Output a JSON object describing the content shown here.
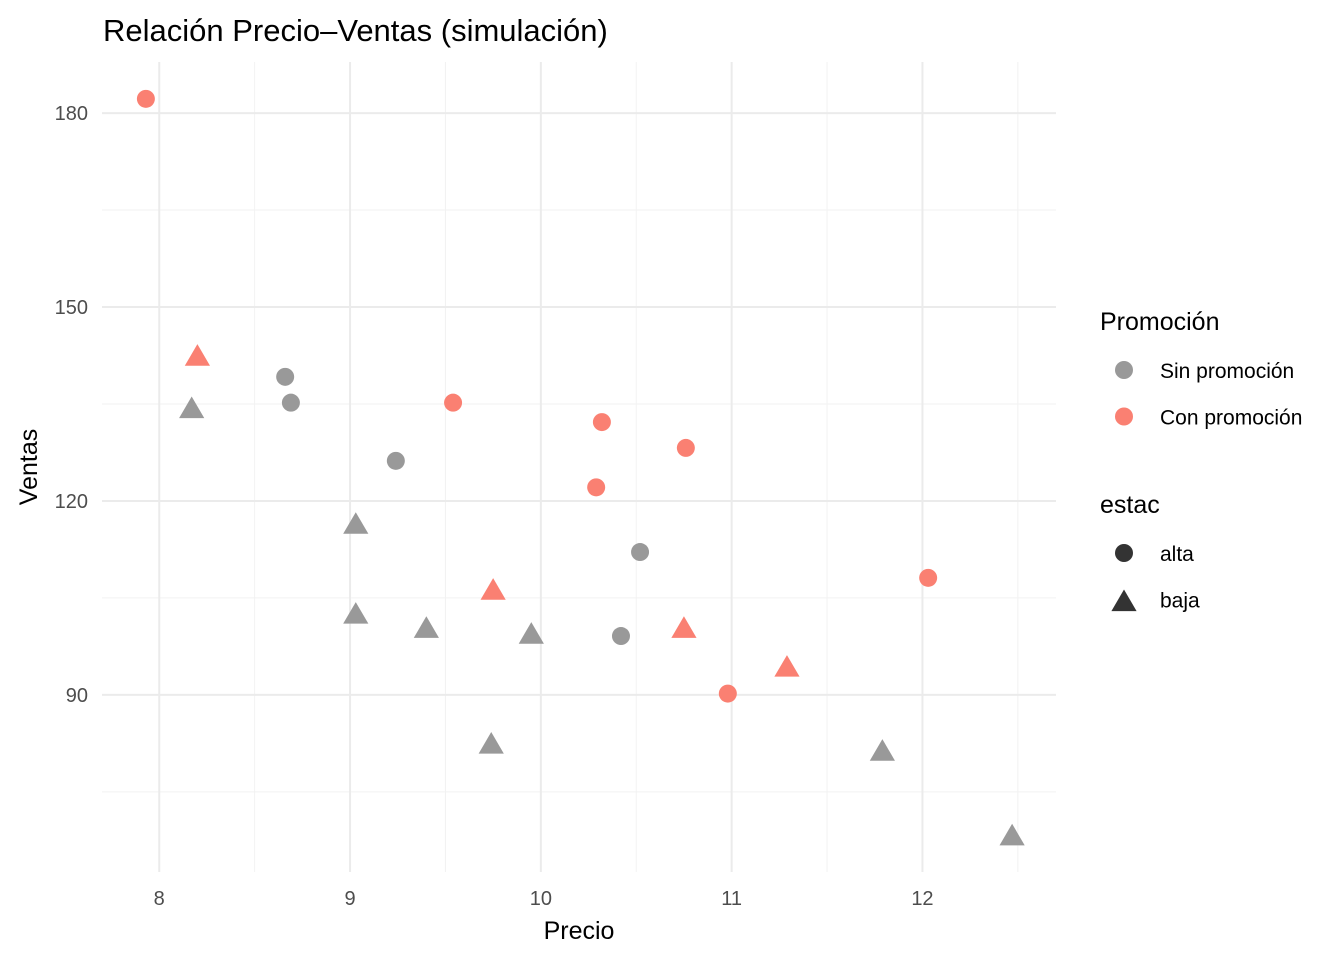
{
  "chart_data": {
    "type": "scatter",
    "title": "Relación Precio–Ventas (simulación)",
    "xlabel": "Precio",
    "ylabel": "Ventas",
    "xlim": [
      7.7,
      12.7
    ],
    "ylim": [
      62.6,
      187.9
    ],
    "xticks": [
      8,
      9,
      10,
      11,
      12
    ],
    "xtick_labels": [
      "8",
      "9",
      "10",
      "11",
      "12"
    ],
    "yticks": [
      90,
      120,
      150,
      180
    ],
    "ytick_labels": [
      "90",
      "120",
      "150",
      "180"
    ],
    "grid": true,
    "legend_position": "right",
    "legends": [
      {
        "title": "Promoción",
        "items": [
          {
            "label": "Sin promoción",
            "color": "#999999",
            "shape": "circle"
          },
          {
            "label": "Con promoción",
            "color": "#FA8072",
            "shape": "circle"
          }
        ]
      },
      {
        "title": "estac",
        "items": [
          {
            "label": "alta",
            "color": "#333333",
            "shape": "circle"
          },
          {
            "label": "baja",
            "color": "#333333",
            "shape": "triangle"
          }
        ]
      }
    ],
    "series": [
      {
        "promo": "Con promoción",
        "estac": "alta",
        "color": "#FA8072",
        "shape": "circle",
        "points": [
          [
            7.93,
            182.2
          ],
          [
            9.54,
            135.2
          ],
          [
            10.32,
            132.2
          ],
          [
            10.76,
            128.2
          ],
          [
            10.29,
            122.1
          ],
          [
            12.03,
            108.1
          ],
          [
            10.98,
            90.2
          ]
        ]
      },
      {
        "promo": "Con promoción",
        "estac": "baja",
        "color": "#FA8072",
        "shape": "triangle",
        "points": [
          [
            8.2,
            142.4
          ],
          [
            9.75,
            106.2
          ],
          [
            10.75,
            100.3
          ],
          [
            11.29,
            94.3
          ]
        ]
      },
      {
        "promo": "Sin promoción",
        "estac": "alta",
        "color": "#999999",
        "shape": "circle",
        "points": [
          [
            8.66,
            139.2
          ],
          [
            8.69,
            135.2
          ],
          [
            9.24,
            126.2
          ],
          [
            10.52,
            112.1
          ],
          [
            10.42,
            99.1
          ]
        ]
      },
      {
        "promo": "Sin promoción",
        "estac": "baja",
        "color": "#999999",
        "shape": "triangle",
        "points": [
          [
            8.17,
            134.3
          ],
          [
            9.03,
            116.4
          ],
          [
            9.03,
            102.5
          ],
          [
            9.4,
            100.3
          ],
          [
            9.95,
            99.4
          ],
          [
            9.74,
            82.4
          ],
          [
            11.79,
            81.3
          ],
          [
            12.47,
            68.2
          ]
        ]
      }
    ]
  }
}
